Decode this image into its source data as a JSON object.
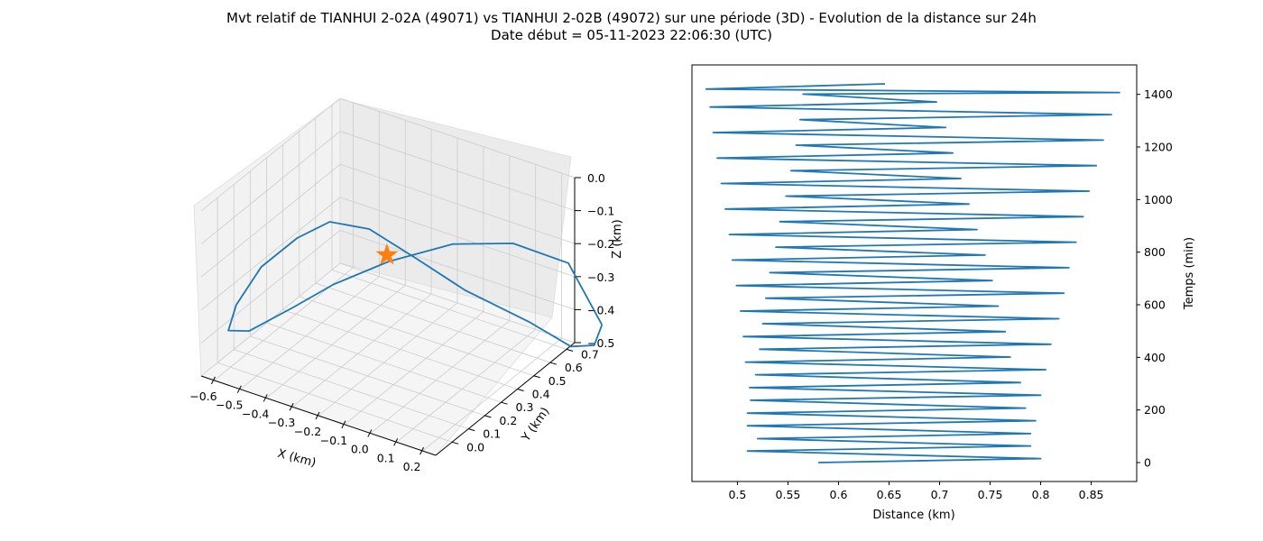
{
  "figure": {
    "title_line1": "Mvt relatif de TIANHUI 2-02A (49071) vs TIANHUI 2-02B (49072) sur une période (3D) - Evolution de la distance sur 24h",
    "title_line2": "Date début = 05-11-2023 22:06:30 (UTC)"
  },
  "colors": {
    "line": "#1f77b4",
    "marker": "#ff7f0e",
    "pane": "#f2f2f2",
    "grid": "#cccccc"
  },
  "chart_data": [
    {
      "type": "line3d",
      "xlabel": "X (km)",
      "ylabel": "Y (km)",
      "zlabel": "Z (km)",
      "xlim": [
        -0.65,
        0.25
      ],
      "ylim": [
        -0.1,
        0.75
      ],
      "zlim": [
        -0.5,
        0.0
      ],
      "xticks": [
        "−0.6",
        "−0.5",
        "−0.4",
        "−0.3",
        "−0.2",
        "−0.1",
        "0.0",
        "0.1",
        "0.2"
      ],
      "yticks": [
        "0.0",
        "0.1",
        "0.2",
        "0.3",
        "0.4",
        "0.5",
        "0.6",
        "0.7"
      ],
      "zticks": [
        "0.0",
        "−0.1",
        "−0.2",
        "−0.3",
        "−0.4",
        "−0.5"
      ],
      "grid": true,
      "marker": {
        "shape": "star",
        "x": 0.0,
        "y": 0.0,
        "z": 0.0
      },
      "trajectory": [
        [
          0.43,
          0.63,
          -0.35
        ],
        [
          0.4,
          0.63,
          -0.42
        ],
        [
          0.33,
          0.6,
          -0.43
        ],
        [
          0.2,
          0.55,
          -0.37
        ],
        [
          0.0,
          0.48,
          -0.3
        ],
        [
          -0.15,
          0.42,
          -0.22
        ],
        [
          -0.3,
          0.37,
          -0.15
        ],
        [
          -0.42,
          0.32,
          -0.14
        ],
        [
          -0.52,
          0.28,
          -0.2
        ],
        [
          -0.62,
          0.22,
          -0.29
        ],
        [
          -0.66,
          0.13,
          -0.38
        ],
        [
          -0.64,
          0.05,
          -0.42
        ],
        [
          -0.56,
          0.05,
          -0.4
        ],
        [
          -0.42,
          0.1,
          -0.31
        ],
        [
          -0.3,
          0.15,
          -0.23
        ],
        [
          -0.15,
          0.25,
          -0.16
        ],
        [
          0.02,
          0.37,
          -0.11
        ],
        [
          0.17,
          0.5,
          -0.12
        ],
        [
          0.32,
          0.6,
          -0.18
        ],
        [
          0.43,
          0.63,
          -0.35
        ]
      ]
    },
    {
      "type": "line",
      "xlabel": "Distance (km)",
      "ylabel": "Temps (min)",
      "xlim": [
        0.455,
        0.895
      ],
      "ylim": [
        -72,
        1512
      ],
      "xticks": [
        0.5,
        0.55,
        0.6,
        0.65,
        0.7,
        0.75,
        0.8,
        0.85
      ],
      "yticks": [
        0,
        200,
        400,
        600,
        800,
        1000,
        1200,
        1400
      ],
      "grid": false,
      "yaxis_position": "right",
      "series": [
        {
          "points": [
            [
              0.58,
              0
            ],
            [
              0.8,
              15
            ],
            [
              0.51,
              44
            ],
            [
              0.79,
              63
            ],
            [
              0.52,
              91
            ],
            [
              0.79,
              110
            ],
            [
              0.51,
              140
            ],
            [
              0.795,
              159
            ],
            [
              0.51,
              188
            ],
            [
              0.785,
              207
            ],
            [
              0.513,
              237
            ],
            [
              0.8,
              256
            ],
            [
              0.512,
              285
            ],
            [
              0.78,
              304
            ],
            [
              0.518,
              334
            ],
            [
              0.805,
              353
            ],
            [
              0.508,
              382
            ],
            [
              0.77,
              401
            ],
            [
              0.522,
              431
            ],
            [
              0.81,
              450
            ],
            [
              0.506,
              479
            ],
            [
              0.765,
              498
            ],
            [
              0.525,
              528
            ],
            [
              0.818,
              547
            ],
            [
              0.503,
              576
            ],
            [
              0.758,
              595
            ],
            [
              0.528,
              625
            ],
            [
              0.823,
              644
            ],
            [
              0.499,
              673
            ],
            [
              0.752,
              692
            ],
            [
              0.532,
              722
            ],
            [
              0.828,
              741
            ],
            [
              0.495,
              770
            ],
            [
              0.745,
              789
            ],
            [
              0.538,
              819
            ],
            [
              0.835,
              838
            ],
            [
              0.492,
              867
            ],
            [
              0.737,
              886
            ],
            [
              0.542,
              916
            ],
            [
              0.842,
              935
            ],
            [
              0.488,
              964
            ],
            [
              0.729,
              983
            ],
            [
              0.548,
              1013
            ],
            [
              0.848,
              1032
            ],
            [
              0.484,
              1061
            ],
            [
              0.721,
              1080
            ],
            [
              0.553,
              1110
            ],
            [
              0.855,
              1129
            ],
            [
              0.48,
              1158
            ],
            [
              0.713,
              1177
            ],
            [
              0.558,
              1207
            ],
            [
              0.862,
              1226
            ],
            [
              0.476,
              1255
            ],
            [
              0.706,
              1274
            ],
            [
              0.562,
              1304
            ],
            [
              0.87,
              1323
            ],
            [
              0.473,
              1352
            ],
            [
              0.697,
              1371
            ],
            [
              0.565,
              1401
            ],
            [
              0.878,
              1407
            ],
            [
              0.469,
              1420
            ],
            [
              0.646,
              1440
            ]
          ]
        }
      ]
    }
  ]
}
